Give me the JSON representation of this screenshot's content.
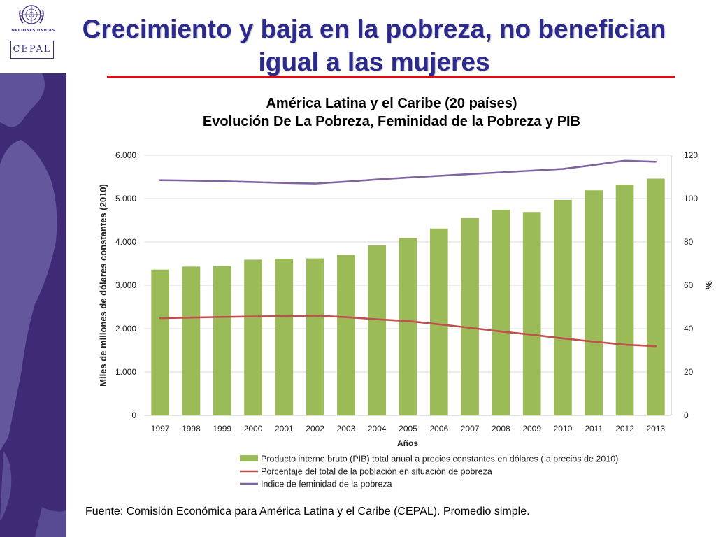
{
  "header": {
    "title_line1": "Crecimiento y baja en la pobreza, no benefician",
    "title_line2": "igual a las mujeres"
  },
  "logos": {
    "un_name": "NACIONES UNIDAS",
    "cepal": "CEPAL"
  },
  "chart_title": {
    "line1": "América Latina y el Caribe (20 países)",
    "line2": "Evolución De La Pobreza, Feminidad de la Pobreza y PIB"
  },
  "footer": {
    "source": "Fuente: Comisión Económica para América Latina y el Caribe (CEPAL). Promedio simple."
  },
  "colors": {
    "bar": "#9bbb59",
    "poverty_line": "#c0504d",
    "feminity_line": "#8064a2",
    "title": "#2d2a8e",
    "underline": "#c4161c",
    "sidebar": "#3f2a78"
  },
  "chart_data": {
    "type": "bar",
    "title": "América Latina y el Caribe (20 países) — Evolución De La Pobreza, Feminidad de la Pobreza y PIB",
    "categories": [
      "1997",
      "1998",
      "1999",
      "2000",
      "2001",
      "2002",
      "2003",
      "2004",
      "2005",
      "2006",
      "2007",
      "2008",
      "2009",
      "2010",
      "2011",
      "2012",
      "2013"
    ],
    "xlabel": "Años",
    "ylabel": "Miles de millones de dólares constantes (2010)",
    "y2label": "%",
    "ylim": [
      0,
      6000
    ],
    "y2lim": [
      0,
      120
    ],
    "yticks": [
      "0",
      "1.000",
      "2.000",
      "3.000",
      "4.000",
      "5.000",
      "6.000"
    ],
    "y2ticks": [
      "0",
      "20",
      "40",
      "60",
      "80",
      "100",
      "120"
    ],
    "legend_position": "bottom",
    "series": [
      {
        "name": "Producto interno bruto (PIB) total anual a precios constantes en dólares ( a precios de 2010)",
        "type": "bar",
        "axis": "left",
        "values": [
          3360,
          3430,
          3440,
          3590,
          3610,
          3620,
          3700,
          3920,
          4090,
          4310,
          4550,
          4740,
          4690,
          4970,
          5190,
          5320,
          5460
        ]
      },
      {
        "name": "Porcentaje del total de la población  en situación de pobreza",
        "type": "line",
        "axis": "right",
        "values": [
          44.8,
          45.1,
          45.4,
          45.6,
          45.8,
          46.0,
          45.3,
          44.3,
          43.5,
          42.0,
          40.4,
          38.7,
          37.2,
          35.5,
          34.0,
          32.6,
          31.9
        ]
      },
      {
        "name": "Indice de feminidad de la pobreza",
        "type": "line",
        "axis": "right",
        "values": [
          108.5,
          108.3,
          108.0,
          107.6,
          107.2,
          106.9,
          107.8,
          108.8,
          109.7,
          110.5,
          111.3,
          112.1,
          112.9,
          113.7,
          115.5,
          117.5,
          117.0
        ]
      }
    ]
  }
}
